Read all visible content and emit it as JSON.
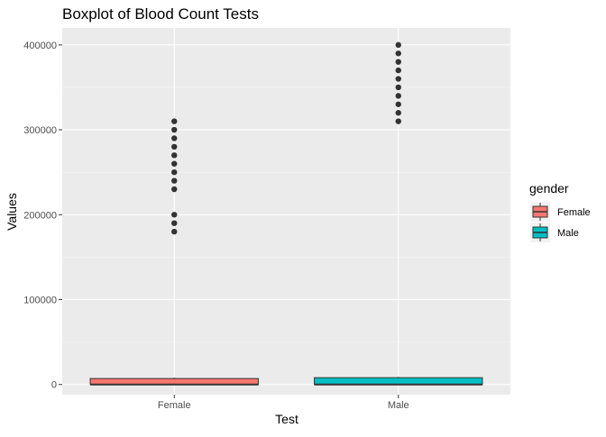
{
  "chart_data": {
    "type": "boxplot",
    "title": "Boxplot of Blood Count Tests",
    "xlabel": "Test",
    "ylabel": "Values",
    "categories": [
      "Female",
      "Male"
    ],
    "ylim": [
      -12000,
      420000
    ],
    "yticks": [
      0,
      100000,
      200000,
      300000,
      400000
    ],
    "ytick_labels": [
      "0",
      "100000",
      "200000",
      "300000",
      "400000"
    ],
    "grid": true,
    "legend": {
      "title": "gender",
      "position": "right",
      "entries": [
        {
          "label": "Female",
          "color": "#F8766D"
        },
        {
          "label": "Male",
          "color": "#00BFC4"
        }
      ]
    },
    "series": [
      {
        "name": "Female",
        "color": "#F8766D",
        "box": {
          "min": 0,
          "q1": 0,
          "median": 0,
          "q3": 7000,
          "max": 8000
        },
        "outliers": [
          180000,
          190000,
          200000,
          230000,
          240000,
          250000,
          260000,
          270000,
          280000,
          290000,
          300000,
          310000
        ]
      },
      {
        "name": "Male",
        "color": "#00BFC4",
        "box": {
          "min": 0,
          "q1": 0,
          "median": 0,
          "q3": 8000,
          "max": 9000
        },
        "outliers": [
          310000,
          320000,
          330000,
          340000,
          350000,
          360000,
          370000,
          380000,
          390000,
          400000
        ]
      }
    ]
  }
}
